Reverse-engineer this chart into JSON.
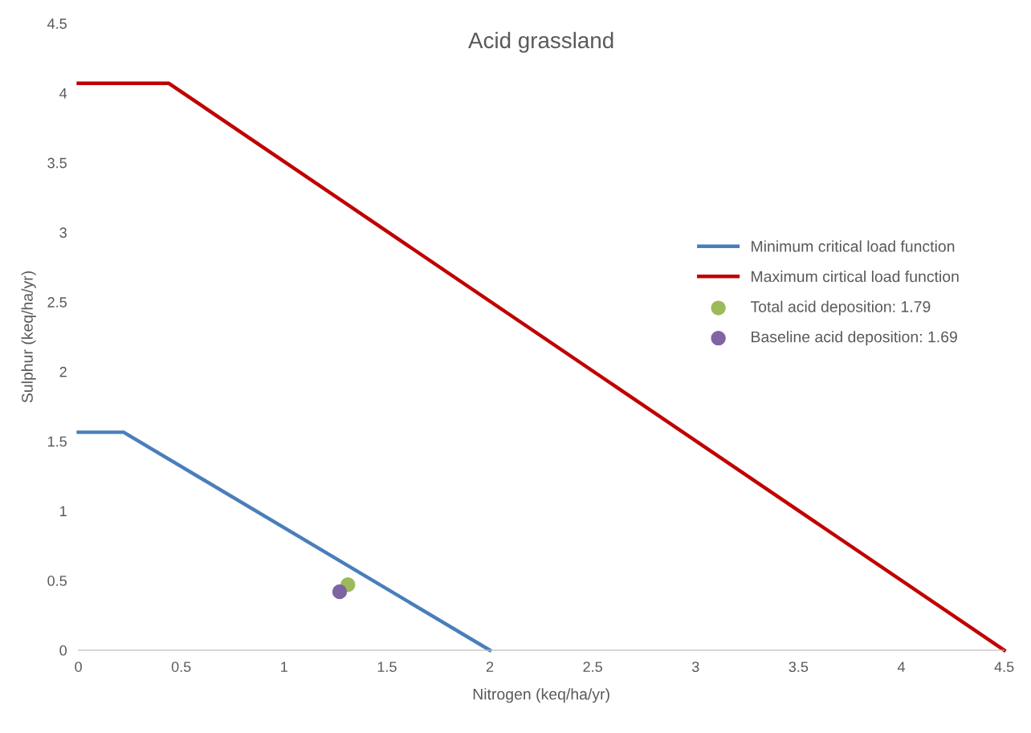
{
  "chart_data": {
    "type": "line",
    "title": "Acid grassland",
    "xlabel": "Nitrogen (keq/ha/yr)",
    "ylabel": "Sulphur (keq/ha/yr)",
    "xlim": [
      0,
      4.5
    ],
    "ylim": [
      0,
      4.5
    ],
    "xticks": [
      0,
      0.5,
      1,
      1.5,
      2,
      2.5,
      3,
      3.5,
      4,
      4.5
    ],
    "yticks": [
      0,
      0.5,
      1,
      1.5,
      2,
      2.5,
      3,
      3.5,
      4,
      4.5
    ],
    "grid": false,
    "legend": "right",
    "series": [
      {
        "name": "Minimum critical load function",
        "color": "#4a7ebb",
        "x": [
          0,
          0.22,
          2.0
        ],
        "values": [
          1.565,
          1.565,
          0
        ]
      },
      {
        "name": "Maximum cirtical load function",
        "color": "#c00000",
        "x": [
          0,
          0.44,
          4.5
        ],
        "values": [
          4.07,
          4.07,
          0
        ]
      },
      {
        "name": "Total acid deposition: 1.79",
        "color": "#9bbb59",
        "type": "scatter",
        "marker": "circle",
        "x": [
          1.31
        ],
        "values": [
          0.47
        ]
      },
      {
        "name": "Baseline acid deposition: 1.69",
        "color": "#8064a2",
        "type": "scatter",
        "marker": "circle",
        "x": [
          1.27
        ],
        "values": [
          0.42
        ]
      }
    ]
  }
}
